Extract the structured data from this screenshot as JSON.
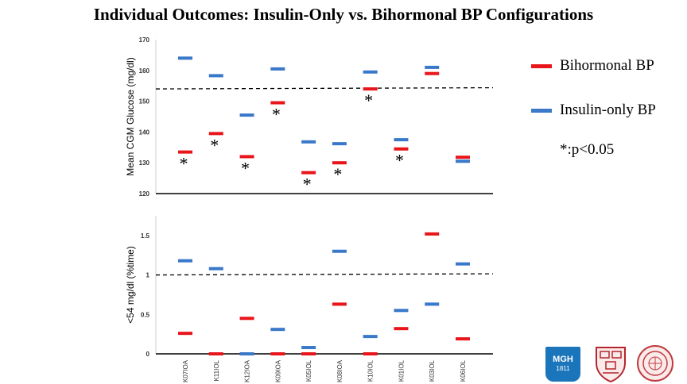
{
  "title": "Individual Outcomes: Insulin-Only vs. Bihormonal BP Configurations",
  "legend": {
    "bihormonal": "Bihormonal BP",
    "insulin_only": "Insulin-only BP",
    "note": "*:p<0.05"
  },
  "colors": {
    "bihormonal": "#e8151b",
    "insulin_only": "#3a78c9"
  },
  "logos": {
    "mgh": "MGH",
    "mgh_year": "1811",
    "harvard": "harvard-shield-icon",
    "seal": "seal-icon"
  },
  "chart_data": [
    {
      "type": "scatter",
      "ylabel": "Mean CGM Glucose (mg/dl)",
      "ylim": [
        120,
        170
      ],
      "yticks": [
        120,
        130,
        140,
        150,
        160,
        170
      ],
      "reference_line": 154,
      "categories": [
        "K07IOA",
        "K11IOL",
        "K12IOA",
        "K09IOA",
        "K05IOL",
        "K08IOA",
        "K10IOL",
        "K01IOL",
        "K03IOL",
        "K06IOL"
      ],
      "series": [
        {
          "name": "Bihormonal BP",
          "values": [
            133.5,
            139.5,
            132,
            149.5,
            126.8,
            130,
            154,
            134.5,
            159,
            131.8
          ]
        },
        {
          "name": "Insulin-only BP",
          "values": [
            164,
            158.3,
            145.5,
            160.5,
            136.8,
            136.2,
            159.5,
            137.5,
            161,
            130.5
          ]
        }
      ],
      "significant": [
        "K07IOA",
        "K11IOL",
        "K12IOA",
        "K09IOA",
        "K05IOL",
        "K08IOA",
        "K10IOL",
        "K01IOL"
      ],
      "significance_marker": "*",
      "grid": false
    },
    {
      "type": "scatter",
      "ylabel": "<54 mg/dl (%time)",
      "ylim": [
        0,
        1.75
      ],
      "yticks": [
        0,
        0.5,
        1,
        1.5
      ],
      "yticklabels": [
        "0",
        "0.5",
        "1",
        "1.5"
      ],
      "reference_line": 1,
      "categories": [
        "K07IOA",
        "K11IOL",
        "K12IOA",
        "K09IOA",
        "K05IOL",
        "K08IOA",
        "K10IOL",
        "K01IOL",
        "K03IOL",
        "K06IOL"
      ],
      "series": [
        {
          "name": "Bihormonal BP",
          "values": [
            0.26,
            0,
            0.45,
            0,
            0,
            0.63,
            0,
            0.32,
            1.52,
            0.19
          ]
        },
        {
          "name": "Insulin-only BP",
          "values": [
            1.18,
            1.08,
            0,
            0.31,
            0.08,
            1.3,
            0.22,
            0.55,
            0.63,
            1.14
          ]
        }
      ],
      "grid": false
    }
  ]
}
